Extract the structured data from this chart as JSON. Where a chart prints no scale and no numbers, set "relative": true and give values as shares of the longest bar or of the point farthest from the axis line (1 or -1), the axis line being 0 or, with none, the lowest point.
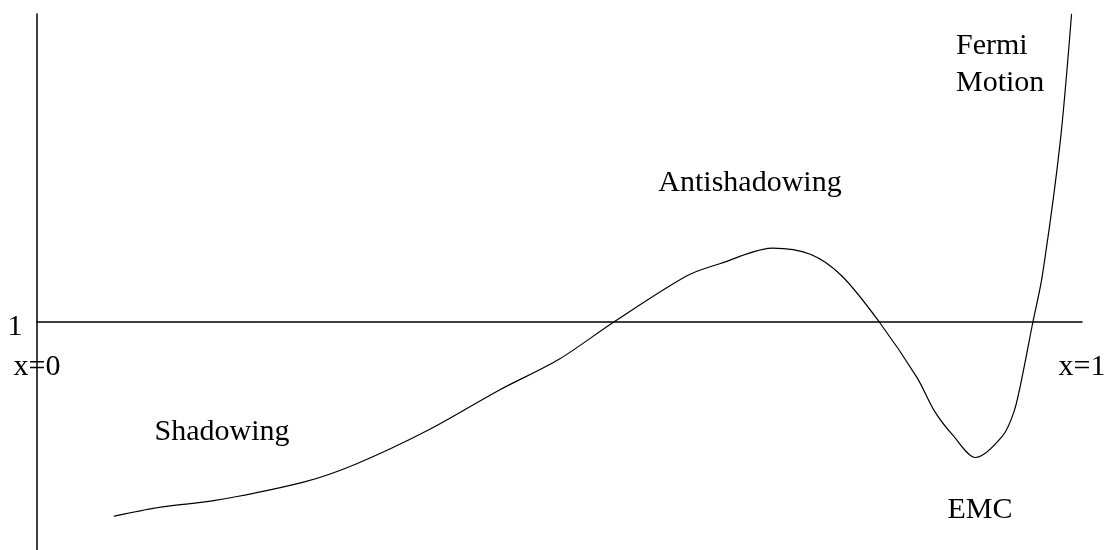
{
  "chart_data": {
    "type": "line",
    "relative": true,
    "xlim": [
      0,
      1
    ],
    "xticks": [
      {
        "value": 0,
        "label": "x=0"
      },
      {
        "value": 1,
        "label": "x=1"
      }
    ],
    "tick_labels": "x",
    "x": [
      0.074,
      0.12,
      0.169,
      0.255,
      0.306,
      0.375,
      0.443,
      0.5,
      0.552,
      0.622,
      0.654,
      0.704,
      0.74,
      0.77,
      0.806,
      0.842,
      0.859,
      0.877,
      0.898,
      0.924,
      0.935,
      0.942,
      0.953,
      0.962,
      0.979,
      0.99
    ],
    "series": [
      {
        "color": "#000000",
        "values": [
          -0.63,
          -0.6,
          -0.58,
          -0.52,
          -0.46,
          -0.35,
          -0.22,
          -0.12,
          0,
          0.15,
          0.19,
          0.24,
          0.22,
          0.15,
          0,
          -0.18,
          -0.29,
          -0.37,
          -0.44,
          -0.37,
          -0.29,
          -0.19,
          0,
          0.15,
          0.58,
          1
        ]
      }
    ],
    "annotations": [
      "1",
      "Shadowing",
      "Antishadowing",
      "EMC",
      "Fermi\nMotion"
    ]
  }
}
